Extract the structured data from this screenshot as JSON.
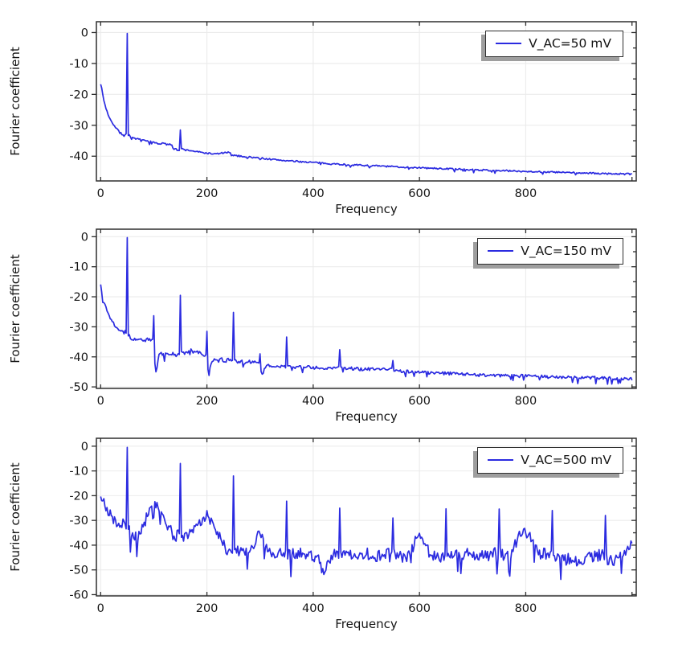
{
  "figure": {
    "background": "#ffffff"
  },
  "style": {
    "line_color": "#2b2be0",
    "grid_color": "#ebebeb",
    "axis_color": "#2e2e2e",
    "text_color": "#141414",
    "legend_background": "#ffffff",
    "legend_border": "#2e2e2e",
    "legend_shadow": "#9e9e9e"
  },
  "chart_data": [
    {
      "type": "line",
      "title": "",
      "xlabel": "Frequency",
      "ylabel": "Fourier coefficient",
      "legend": "V_AC=50 mV",
      "legend_position": "top-right",
      "grid": true,
      "xlim": [
        0,
        1000
      ],
      "ylim": [
        -48,
        3.5
      ],
      "xticks": [
        0,
        200,
        400,
        600,
        800
      ],
      "yticks": [
        0,
        -10,
        -20,
        -30,
        -40
      ],
      "noise": 0.25,
      "seed": 7,
      "baseline": [
        [
          0,
          -16.5
        ],
        [
          3,
          -19
        ],
        [
          6,
          -22
        ],
        [
          10,
          -24.5
        ],
        [
          15,
          -27
        ],
        [
          20,
          -28.5
        ],
        [
          25,
          -30
        ],
        [
          30,
          -31
        ],
        [
          35,
          -32
        ],
        [
          40,
          -32.3
        ],
        [
          44,
          -33.5
        ],
        [
          47,
          -32.8
        ],
        [
          53,
          -33.2
        ],
        [
          60,
          -34
        ],
        [
          70,
          -34.5
        ],
        [
          80,
          -34.8
        ],
        [
          90,
          -35.2
        ],
        [
          100,
          -35.5
        ],
        [
          110,
          -36
        ],
        [
          118,
          -35.8
        ],
        [
          125,
          -36.3
        ],
        [
          130,
          -36
        ],
        [
          136,
          -36.5
        ],
        [
          142,
          -37.8
        ],
        [
          147,
          -38.2
        ],
        [
          153,
          -37.6
        ],
        [
          160,
          -38
        ],
        [
          170,
          -38.2
        ],
        [
          180,
          -38.5
        ],
        [
          190,
          -38.8
        ],
        [
          200,
          -39
        ],
        [
          215,
          -39.3
        ],
        [
          228,
          -39
        ],
        [
          240,
          -38.8
        ],
        [
          252,
          -39.8
        ],
        [
          265,
          -40
        ],
        [
          280,
          -40.3
        ],
        [
          300,
          -40.6
        ],
        [
          320,
          -41
        ],
        [
          340,
          -41.3
        ],
        [
          360,
          -41.6
        ],
        [
          380,
          -41.8
        ],
        [
          400,
          -42
        ],
        [
          430,
          -42.4
        ],
        [
          460,
          -42.7
        ],
        [
          500,
          -43
        ],
        [
          540,
          -43.3
        ],
        [
          580,
          -43.6
        ],
        [
          620,
          -43.9
        ],
        [
          660,
          -44.1
        ],
        [
          700,
          -44.4
        ],
        [
          740,
          -44.6
        ],
        [
          780,
          -44.8
        ],
        [
          820,
          -45
        ],
        [
          860,
          -45.2
        ],
        [
          900,
          -45.4
        ],
        [
          940,
          -45.6
        ],
        [
          1000,
          -45.8
        ]
      ],
      "peaks": [
        [
          50,
          -0.3
        ],
        [
          150,
          -31.5
        ]
      ]
    },
    {
      "type": "line",
      "title": "",
      "xlabel": "Frequency",
      "ylabel": "Fourier coefficient",
      "legend": "V_AC=150 mV",
      "legend_position": "top-right",
      "grid": true,
      "xlim": [
        0,
        1000
      ],
      "ylim": [
        -50.5,
        2.5
      ],
      "xticks": [
        0,
        200,
        400,
        600,
        800
      ],
      "yticks": [
        0,
        -10,
        -20,
        -30,
        -40,
        -50
      ],
      "noise": 0.55,
      "seed": 13,
      "baseline": [
        [
          0,
          -16
        ],
        [
          3,
          -19
        ],
        [
          6,
          -21.5
        ],
        [
          10,
          -23.5
        ],
        [
          15,
          -26
        ],
        [
          20,
          -27.5
        ],
        [
          25,
          -29
        ],
        [
          30,
          -30
        ],
        [
          35,
          -31
        ],
        [
          40,
          -30.8
        ],
        [
          44,
          -32
        ],
        [
          47,
          -31.5
        ],
        [
          53,
          -33
        ],
        [
          58,
          -33.8
        ],
        [
          64,
          -34.2
        ],
        [
          70,
          -34.5
        ],
        [
          76,
          -34
        ],
        [
          82,
          -34.6
        ],
        [
          88,
          -34.2
        ],
        [
          94,
          -34.5
        ],
        [
          98,
          -34
        ],
        [
          102,
          -42
        ],
        [
          104,
          -45.5
        ],
        [
          107,
          -42
        ],
        [
          110,
          -39.5
        ],
        [
          115,
          -38.8
        ],
        [
          120,
          -39.5
        ],
        [
          125,
          -38.5
        ],
        [
          130,
          -39.8
        ],
        [
          135,
          -38.6
        ],
        [
          140,
          -39.3
        ],
        [
          145,
          -39.8
        ],
        [
          148,
          -38.8
        ],
        [
          153,
          -38.5
        ],
        [
          158,
          -38.8
        ],
        [
          164,
          -38.3
        ],
        [
          170,
          -37.8
        ],
        [
          176,
          -38.6
        ],
        [
          182,
          -38.2
        ],
        [
          188,
          -39
        ],
        [
          194,
          -39.4
        ],
        [
          198,
          -39.8
        ],
        [
          202,
          -44
        ],
        [
          204,
          -45
        ],
        [
          207,
          -42.5
        ],
        [
          210,
          -41
        ],
        [
          216,
          -40.6
        ],
        [
          222,
          -41.3
        ],
        [
          228,
          -40.8
        ],
        [
          234,
          -41.5
        ],
        [
          240,
          -41
        ],
        [
          246,
          -41.4
        ],
        [
          252,
          -41.2
        ],
        [
          258,
          -41.8
        ],
        [
          264,
          -41.4
        ],
        [
          270,
          -42
        ],
        [
          278,
          -41.6
        ],
        [
          286,
          -41.9
        ],
        [
          294,
          -41.5
        ],
        [
          298,
          -42
        ],
        [
          302,
          -44.8
        ],
        [
          305,
          -46
        ],
        [
          309,
          -43.5
        ],
        [
          315,
          -43
        ],
        [
          322,
          -43.4
        ],
        [
          330,
          -43
        ],
        [
          338,
          -43.4
        ],
        [
          346,
          -43.2
        ],
        [
          354,
          -43
        ],
        [
          362,
          -43.4
        ],
        [
          372,
          -43.2
        ],
        [
          382,
          -43.6
        ],
        [
          392,
          -43.4
        ],
        [
          402,
          -43.7
        ],
        [
          415,
          -43.5
        ],
        [
          428,
          -43.8
        ],
        [
          440,
          -43.6
        ],
        [
          448,
          -43.3
        ],
        [
          455,
          -43.8
        ],
        [
          465,
          -44
        ],
        [
          478,
          -43.8
        ],
        [
          490,
          -44.2
        ],
        [
          505,
          -44
        ],
        [
          520,
          -44.3
        ],
        [
          535,
          -44.1
        ],
        [
          546,
          -43.9
        ],
        [
          554,
          -44.5
        ],
        [
          565,
          -44.7
        ],
        [
          580,
          -44.9
        ],
        [
          600,
          -45.1
        ],
        [
          630,
          -45.4
        ],
        [
          660,
          -45.6
        ],
        [
          700,
          -45.9
        ],
        [
          740,
          -46.1
        ],
        [
          780,
          -46.3
        ],
        [
          820,
          -46.5
        ],
        [
          860,
          -46.7
        ],
        [
          900,
          -46.9
        ],
        [
          950,
          -47.1
        ],
        [
          1000,
          -47.3
        ]
      ],
      "peaks": [
        [
          50,
          -0.3
        ],
        [
          100,
          -26.3
        ],
        [
          150,
          -19.5
        ],
        [
          200,
          -31.5
        ],
        [
          250,
          -25.2
        ],
        [
          300,
          -39
        ],
        [
          350,
          -33.4
        ],
        [
          450,
          -37.6
        ],
        [
          550,
          -41.2
        ]
      ]
    },
    {
      "type": "line",
      "title": "",
      "xlabel": "Frequency",
      "ylabel": "Fourier coefficient",
      "legend": "V_AC=500 mV",
      "legend_position": "top-right",
      "grid": true,
      "xlim": [
        0,
        1000
      ],
      "ylim": [
        -60.5,
        3.2
      ],
      "xticks": [
        0,
        200,
        400,
        600,
        800
      ],
      "yticks": [
        0,
        -10,
        -20,
        -30,
        -40,
        -50,
        -60
      ],
      "noise": 2.4,
      "seed": 21,
      "baseline": [
        [
          0,
          -20
        ],
        [
          4,
          -22
        ],
        [
          8,
          -24
        ],
        [
          14,
          -26
        ],
        [
          20,
          -28
        ],
        [
          26,
          -30
        ],
        [
          32,
          -31.5
        ],
        [
          38,
          -32.5
        ],
        [
          44,
          -31
        ],
        [
          48,
          -31.5
        ],
        [
          54,
          -33
        ],
        [
          60,
          -35.5
        ],
        [
          66,
          -37
        ],
        [
          72,
          -36
        ],
        [
          78,
          -33
        ],
        [
          84,
          -30
        ],
        [
          90,
          -27
        ],
        [
          96,
          -24
        ],
        [
          100,
          -23
        ],
        [
          105,
          -24
        ],
        [
          110,
          -26
        ],
        [
          116,
          -28.5
        ],
        [
          122,
          -31
        ],
        [
          128,
          -33
        ],
        [
          134,
          -35
        ],
        [
          140,
          -37.5
        ],
        [
          145,
          -36
        ],
        [
          148,
          -35.5
        ],
        [
          154,
          -36
        ],
        [
          160,
          -36.5
        ],
        [
          166,
          -36
        ],
        [
          172,
          -34.5
        ],
        [
          178,
          -33
        ],
        [
          184,
          -31.5
        ],
        [
          190,
          -30
        ],
        [
          196,
          -28.5
        ],
        [
          200,
          -28
        ],
        [
          205,
          -29.5
        ],
        [
          210,
          -31
        ],
        [
          216,
          -33.5
        ],
        [
          222,
          -36
        ],
        [
          228,
          -38.5
        ],
        [
          234,
          -40.5
        ],
        [
          240,
          -42
        ],
        [
          246,
          -41
        ],
        [
          252,
          -41.5
        ],
        [
          258,
          -42.5
        ],
        [
          264,
          -42
        ],
        [
          272,
          -43.5
        ],
        [
          280,
          -44
        ],
        [
          288,
          -39
        ],
        [
          295,
          -36
        ],
        [
          300,
          -34.5
        ],
        [
          306,
          -37
        ],
        [
          312,
          -40
        ],
        [
          318,
          -43
        ],
        [
          326,
          -44
        ],
        [
          334,
          -42.5
        ],
        [
          342,
          -43.5
        ],
        [
          348,
          -43
        ],
        [
          356,
          -44
        ],
        [
          364,
          -43
        ],
        [
          372,
          -44
        ],
        [
          380,
          -43
        ],
        [
          390,
          -45
        ],
        [
          400,
          -44
        ],
        [
          410,
          -46
        ],
        [
          420,
          -52
        ],
        [
          428,
          -46
        ],
        [
          436,
          -44
        ],
        [
          444,
          -43.5
        ],
        [
          452,
          -44
        ],
        [
          462,
          -44.5
        ],
        [
          472,
          -43.5
        ],
        [
          482,
          -44.5
        ],
        [
          492,
          -44
        ],
        [
          502,
          -43.5
        ],
        [
          512,
          -45
        ],
        [
          522,
          -44.5
        ],
        [
          532,
          -44
        ],
        [
          542,
          -42.5
        ],
        [
          548,
          -42
        ],
        [
          556,
          -44
        ],
        [
          566,
          -45
        ],
        [
          576,
          -44.5
        ],
        [
          584,
          -42
        ],
        [
          592,
          -38.5
        ],
        [
          600,
          -36.5
        ],
        [
          608,
          -38.5
        ],
        [
          616,
          -42
        ],
        [
          624,
          -44.5
        ],
        [
          632,
          -44
        ],
        [
          640,
          -44.5
        ],
        [
          648,
          -43.5
        ],
        [
          656,
          -44.5
        ],
        [
          664,
          -45
        ],
        [
          672,
          -44
        ],
        [
          680,
          -44.5
        ],
        [
          688,
          -43.5
        ],
        [
          696,
          -43
        ],
        [
          704,
          -44.5
        ],
        [
          712,
          -45
        ],
        [
          720,
          -44
        ],
        [
          728,
          -44.5
        ],
        [
          736,
          -43.5
        ],
        [
          744,
          -43
        ],
        [
          752,
          -43.5
        ],
        [
          760,
          -44.5
        ],
        [
          768,
          -45
        ],
        [
          776,
          -42
        ],
        [
          784,
          -38
        ],
        [
          792,
          -35.5
        ],
        [
          800,
          -34
        ],
        [
          806,
          -36
        ],
        [
          812,
          -38.5
        ],
        [
          820,
          -42
        ],
        [
          828,
          -44
        ],
        [
          836,
          -43.5
        ],
        [
          844,
          -44
        ],
        [
          852,
          -44.5
        ],
        [
          860,
          -45.5
        ],
        [
          868,
          -45
        ],
        [
          876,
          -46
        ],
        [
          884,
          -45.5
        ],
        [
          892,
          -46.5
        ],
        [
          900,
          -47
        ],
        [
          908,
          -46
        ],
        [
          916,
          -45
        ],
        [
          924,
          -45.5
        ],
        [
          932,
          -44.5
        ],
        [
          940,
          -44
        ],
        [
          948,
          -44.5
        ],
        [
          956,
          -46
        ],
        [
          964,
          -47
        ],
        [
          972,
          -45.5
        ],
        [
          980,
          -45
        ],
        [
          988,
          -43
        ],
        [
          994,
          -41
        ],
        [
          1000,
          -40
        ]
      ],
      "peaks": [
        [
          50,
          -0.5
        ],
        [
          150,
          -7
        ],
        [
          250,
          -12
        ],
        [
          350,
          -22.2
        ],
        [
          450,
          -25
        ],
        [
          550,
          -29
        ],
        [
          650,
          -25.3
        ],
        [
          750,
          -25.4
        ],
        [
          850,
          -26
        ],
        [
          950,
          -28
        ]
      ]
    }
  ]
}
